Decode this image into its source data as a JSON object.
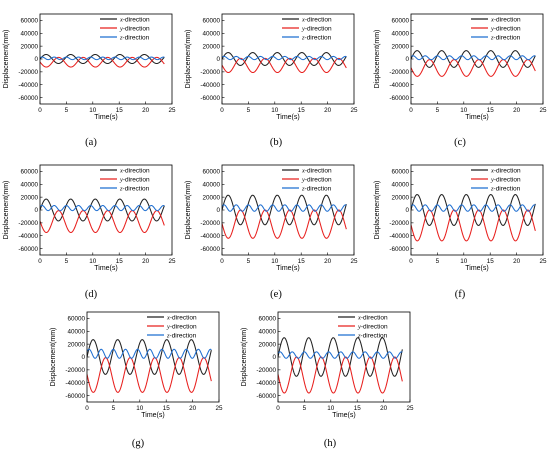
{
  "chart_data": [
    {
      "type": "line",
      "label": "(a)",
      "xlabel": "Time(s)",
      "ylabel": "Displacement(mm)",
      "xlim": [
        0,
        25
      ],
      "ylim": [
        -70000,
        70000
      ],
      "xticks": [
        0,
        5,
        10,
        15,
        20,
        25
      ],
      "yticks": [
        -60000,
        -40000,
        -20000,
        0,
        20000,
        40000,
        60000
      ],
      "legend": "top-right",
      "series": [
        {
          "name": "x-direction",
          "color": "#222222",
          "center": 0,
          "amplitude": 7000,
          "period": 4.65,
          "phase": 0.0
        },
        {
          "name": "y-direction",
          "color": "#e8201e",
          "center": -5000,
          "amplitude": 7500,
          "period": 4.65,
          "phase": 3.1
        },
        {
          "name": "z-direction",
          "color": "#1f6fd1",
          "center": 1000,
          "amplitude": 2000,
          "period": 2.3,
          "phase": 0.5
        }
      ]
    },
    {
      "type": "line",
      "label": "(b)",
      "xlabel": "Time(s)",
      "ylabel": "Displacement(mm)",
      "xlim": [
        0,
        25
      ],
      "ylim": [
        -70000,
        70000
      ],
      "xticks": [
        0,
        5,
        10,
        15,
        20,
        25
      ],
      "yticks": [
        -60000,
        -40000,
        -20000,
        0,
        20000,
        40000,
        60000
      ],
      "legend": "top-right",
      "series": [
        {
          "name": "x-direction",
          "color": "#222222",
          "center": 0,
          "amplitude": 10000,
          "period": 4.65,
          "phase": 0.0
        },
        {
          "name": "y-direction",
          "color": "#e8201e",
          "center": -10000,
          "amplitude": 11000,
          "period": 4.65,
          "phase": 3.1
        },
        {
          "name": "z-direction",
          "color": "#1f6fd1",
          "center": 1500,
          "amplitude": 2500,
          "period": 2.3,
          "phase": 0.5
        }
      ]
    },
    {
      "type": "line",
      "label": "(c)",
      "xlabel": "Time(s)",
      "ylabel": "Displacement(mm)",
      "xlim": [
        0,
        25
      ],
      "ylim": [
        -70000,
        70000
      ],
      "xticks": [
        0,
        5,
        10,
        15,
        20,
        25
      ],
      "yticks": [
        -60000,
        -40000,
        -20000,
        0,
        20000,
        40000,
        60000
      ],
      "legend": "top-right",
      "series": [
        {
          "name": "x-direction",
          "color": "#222222",
          "center": 0,
          "amplitude": 13000,
          "period": 4.65,
          "phase": 0.0
        },
        {
          "name": "y-direction",
          "color": "#e8201e",
          "center": -14000,
          "amplitude": 13000,
          "period": 4.65,
          "phase": 3.1
        },
        {
          "name": "z-direction",
          "color": "#1f6fd1",
          "center": 2000,
          "amplitude": 3000,
          "period": 2.3,
          "phase": 0.5
        }
      ]
    },
    {
      "type": "line",
      "label": "(d)",
      "xlabel": "Time(s)",
      "ylabel": "Displacement(mm)",
      "xlim": [
        0,
        25
      ],
      "ylim": [
        -70000,
        70000
      ],
      "xticks": [
        0,
        5,
        10,
        15,
        20,
        25
      ],
      "yticks": [
        -60000,
        -40000,
        -20000,
        0,
        20000,
        40000,
        60000
      ],
      "legend": "top-right",
      "series": [
        {
          "name": "x-direction",
          "color": "#222222",
          "center": 0,
          "amplitude": 17000,
          "period": 4.65,
          "phase": 0.0
        },
        {
          "name": "y-direction",
          "color": "#e8201e",
          "center": -18000,
          "amplitude": 17000,
          "period": 4.65,
          "phase": 3.1
        },
        {
          "name": "z-direction",
          "color": "#1f6fd1",
          "center": 3000,
          "amplitude": 4000,
          "period": 2.3,
          "phase": 0.5
        }
      ]
    },
    {
      "type": "line",
      "label": "(e)",
      "xlabel": "Time(s)",
      "ylabel": "Displacement(mm)",
      "xlim": [
        0,
        25
      ],
      "ylim": [
        -70000,
        70000
      ],
      "xticks": [
        0,
        5,
        10,
        15,
        20,
        25
      ],
      "yticks": [
        -60000,
        -40000,
        -20000,
        0,
        20000,
        40000,
        60000
      ],
      "legend": "top-right",
      "series": [
        {
          "name": "x-direction",
          "color": "#222222",
          "center": 0,
          "amplitude": 23000,
          "period": 4.65,
          "phase": 0.0
        },
        {
          "name": "y-direction",
          "color": "#e8201e",
          "center": -22000,
          "amplitude": 22000,
          "period": 4.65,
          "phase": 3.1
        },
        {
          "name": "z-direction",
          "color": "#1f6fd1",
          "center": 3000,
          "amplitude": 5000,
          "period": 2.3,
          "phase": 0.5
        }
      ]
    },
    {
      "type": "line",
      "label": "(f)",
      "xlabel": "Time(s)",
      "ylabel": "Displacement(mm)",
      "xlim": [
        0,
        25
      ],
      "ylim": [
        -70000,
        70000
      ],
      "xticks": [
        0,
        5,
        10,
        15,
        20,
        25
      ],
      "yticks": [
        -60000,
        -40000,
        -20000,
        0,
        20000,
        40000,
        60000
      ],
      "legend": "top-right",
      "series": [
        {
          "name": "x-direction",
          "color": "#222222",
          "center": 0,
          "amplitude": 24000,
          "period": 4.65,
          "phase": 0.0
        },
        {
          "name": "y-direction",
          "color": "#e8201e",
          "center": -24000,
          "amplitude": 24000,
          "period": 4.65,
          "phase": 3.1
        },
        {
          "name": "z-direction",
          "color": "#1f6fd1",
          "center": 3000,
          "amplitude": 5000,
          "period": 2.3,
          "phase": 0.5
        }
      ]
    },
    {
      "type": "line",
      "label": "(g)",
      "xlabel": "Time(s)",
      "ylabel": "Displacement(mm)",
      "xlim": [
        0,
        25
      ],
      "ylim": [
        -70000,
        70000
      ],
      "xticks": [
        0,
        5,
        10,
        15,
        20,
        25
      ],
      "yticks": [
        -60000,
        -40000,
        -20000,
        0,
        20000,
        40000,
        60000
      ],
      "legend": "top-right",
      "series": [
        {
          "name": "x-direction",
          "color": "#222222",
          "center": 0,
          "amplitude": 27000,
          "period": 4.65,
          "phase": 0.0
        },
        {
          "name": "y-direction",
          "color": "#e8201e",
          "center": -28000,
          "amplitude": 27000,
          "period": 4.65,
          "phase": 3.1
        },
        {
          "name": "z-direction",
          "color": "#1f6fd1",
          "center": 5000,
          "amplitude": 7000,
          "period": 2.3,
          "phase": 0.5
        }
      ]
    },
    {
      "type": "line",
      "label": "(h)",
      "xlabel": "Time(s)",
      "ylabel": "Displacement(mm)",
      "xlim": [
        0,
        25
      ],
      "ylim": [
        -70000,
        70000
      ],
      "xticks": [
        0,
        5,
        10,
        15,
        20,
        25
      ],
      "yticks": [
        -60000,
        -40000,
        -20000,
        0,
        20000,
        40000,
        60000
      ],
      "legend": "top-right",
      "series": [
        {
          "name": "x-direction",
          "color": "#222222",
          "center": 0,
          "amplitude": 30000,
          "period": 4.65,
          "phase": 0.0
        },
        {
          "name": "y-direction",
          "color": "#e8201e",
          "center": -28000,
          "amplitude": 28000,
          "period": 4.65,
          "phase": 3.1
        },
        {
          "name": "z-direction",
          "color": "#1f6fd1",
          "center": 3000,
          "amplitude": 5000,
          "period": 2.3,
          "phase": 0.5
        }
      ]
    }
  ]
}
